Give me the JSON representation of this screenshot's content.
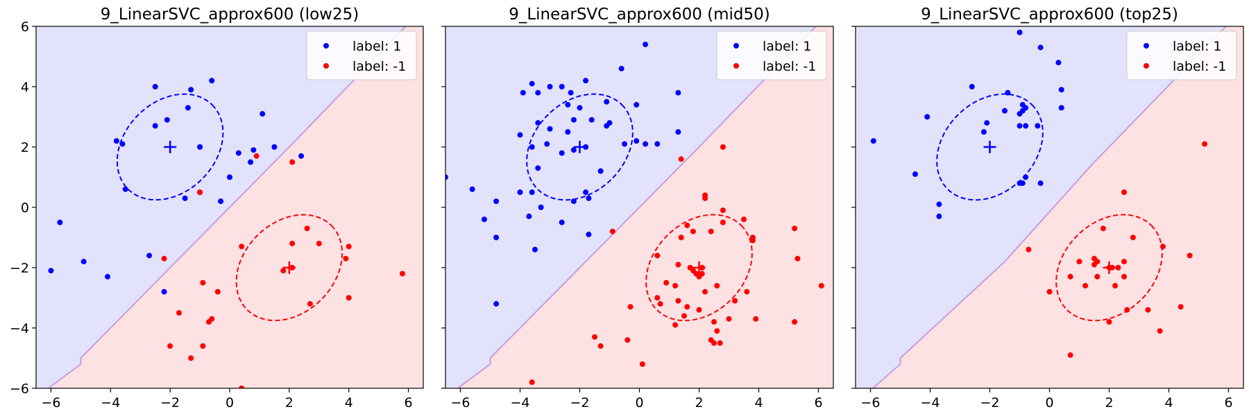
{
  "colors": {
    "blue_point": "#0000ff",
    "red_point": "#ff0000",
    "blue_region": "#e2e2fc",
    "red_region": "#fde1e3",
    "boundary": "#c59edb"
  },
  "chart_data": [
    {
      "type": "scatter",
      "title": "9_LinearSVC_approx600 (low25)",
      "xlim": [
        -6.5,
        6.5
      ],
      "ylim": [
        -6,
        6
      ],
      "xticks": [
        -6,
        -4,
        -2,
        0,
        2,
        4,
        6
      ],
      "yticks": [
        -6,
        -4,
        -2,
        0,
        2,
        4,
        6
      ],
      "tick_labels_x": [
        "−6",
        "−4",
        "−2",
        "0",
        "2",
        "4",
        "6"
      ],
      "tick_labels_y": [
        "−6",
        "−4",
        "−2",
        "0",
        "2",
        "4",
        "6"
      ],
      "show_y_tick_labels": true,
      "legend_position": "top-right",
      "boundary": [
        [
          -6.5,
          -6.3
        ],
        [
          -5.0,
          -5.2
        ],
        [
          -5.0,
          -5.0
        ],
        [
          1.8,
          1.8
        ],
        [
          2.0,
          2.0
        ],
        [
          6.5,
          6.6
        ]
      ],
      "series": [
        {
          "name": "label: 1",
          "color": "#0000ff",
          "center": [
            -2,
            2
          ],
          "ellipse": {
            "rx": 2.0,
            "ry": 1.5,
            "angle": 45
          },
          "points": [
            [
              -2.5,
              4.0
            ],
            [
              -1.3,
              3.9
            ],
            [
              -0.6,
              4.2
            ],
            [
              -1.4,
              3.3
            ],
            [
              -2.1,
              2.9
            ],
            [
              -2.5,
              2.7
            ],
            [
              -3.8,
              2.2
            ],
            [
              -3.6,
              2.1
            ],
            [
              -1.0,
              2.0
            ],
            [
              0.3,
              1.8
            ],
            [
              0.8,
              1.9
            ],
            [
              1.5,
              2.0
            ],
            [
              1.1,
              3.1
            ],
            [
              -3.5,
              0.6
            ],
            [
              -1.0,
              0.5
            ],
            [
              -0.3,
              0.2
            ],
            [
              0.0,
              1.0
            ],
            [
              0.7,
              1.5
            ],
            [
              -1.5,
              0.3
            ],
            [
              -5.7,
              -0.5
            ],
            [
              -6.0,
              -2.1
            ],
            [
              -4.9,
              -1.8
            ],
            [
              -4.1,
              -2.3
            ],
            [
              -2.7,
              -1.6
            ],
            [
              -2.2,
              -2.8
            ],
            [
              2.4,
              1.7
            ]
          ]
        },
        {
          "name": "label: -1",
          "color": "#ff0000",
          "center": [
            2,
            -2
          ],
          "ellipse": {
            "rx": 2.0,
            "ry": 1.5,
            "angle": 45
          },
          "points": [
            [
              -1.0,
              0.5
            ],
            [
              0.9,
              1.7
            ],
            [
              2.1,
              1.5
            ],
            [
              0.4,
              -1.3
            ],
            [
              2.1,
              -1.2
            ],
            [
              2.6,
              -0.7
            ],
            [
              3.0,
              -1.2
            ],
            [
              4.0,
              -1.3
            ],
            [
              3.9,
              -1.7
            ],
            [
              1.8,
              -2.1
            ],
            [
              2.1,
              -2.0
            ],
            [
              2.7,
              -3.2
            ],
            [
              4.0,
              -3.0
            ],
            [
              -2.2,
              -1.7
            ],
            [
              -0.9,
              -2.5
            ],
            [
              -0.4,
              -2.8
            ],
            [
              -0.6,
              -3.7
            ],
            [
              -0.7,
              -3.8
            ],
            [
              -1.7,
              -3.5
            ],
            [
              -2.0,
              -4.6
            ],
            [
              -0.9,
              -4.6
            ],
            [
              -1.3,
              -5.0
            ],
            [
              0.4,
              -6.0
            ],
            [
              5.8,
              -2.2
            ]
          ]
        }
      ]
    },
    {
      "type": "scatter",
      "title": "9_LinearSVC_approx600 (mid50)",
      "xlim": [
        -6.5,
        6.5
      ],
      "ylim": [
        -6,
        6
      ],
      "xticks": [
        -6,
        -4,
        -2,
        0,
        2,
        4,
        6
      ],
      "yticks": [
        -6,
        -4,
        -2,
        0,
        2,
        4,
        6
      ],
      "tick_labels_x": [
        "−6",
        "−4",
        "−2",
        "0",
        "2",
        "4",
        "6"
      ],
      "tick_labels_y": [
        "−6",
        "−4",
        "−2",
        "0",
        "2",
        "4",
        "6"
      ],
      "show_y_tick_labels": false,
      "legend_position": "top-right",
      "boundary": [
        [
          -6.5,
          -6.3
        ],
        [
          -5.0,
          -5.2
        ],
        [
          -5.0,
          -5.0
        ],
        [
          1.8,
          1.8
        ],
        [
          2.0,
          2.0
        ],
        [
          6.5,
          6.6
        ]
      ],
      "series": [
        {
          "name": "label: 1",
          "color": "#0000ff",
          "center": [
            -2,
            2
          ],
          "ellipse": {
            "rx": 2.0,
            "ry": 1.5,
            "angle": 45
          },
          "points": [
            [
              0.2,
              5.4
            ],
            [
              -0.6,
              4.6
            ],
            [
              -3.6,
              4.1
            ],
            [
              -3.0,
              4.0
            ],
            [
              -2.6,
              4.0
            ],
            [
              -1.8,
              4.2
            ],
            [
              -3.9,
              3.8
            ],
            [
              -3.4,
              3.8
            ],
            [
              -2.3,
              3.8
            ],
            [
              -2.0,
              3.3
            ],
            [
              -2.4,
              3.4
            ],
            [
              -1.1,
              3.5
            ],
            [
              -0.1,
              3.4
            ],
            [
              1.3,
              3.8
            ],
            [
              -3.4,
              2.8
            ],
            [
              -2.2,
              2.9
            ],
            [
              -1.6,
              2.9
            ],
            [
              -1.0,
              2.8
            ],
            [
              -1.1,
              2.7
            ],
            [
              -3.0,
              2.6
            ],
            [
              -2.4,
              2.5
            ],
            [
              -3.6,
              2.0
            ],
            [
              -3.1,
              2.1
            ],
            [
              -2.6,
              1.8
            ],
            [
              -2.2,
              1.9
            ],
            [
              -1.8,
              2.0
            ],
            [
              -0.5,
              2.1
            ],
            [
              -0.1,
              2.2
            ],
            [
              0.2,
              2.1
            ],
            [
              0.6,
              2.1
            ],
            [
              1.3,
              2.5
            ],
            [
              -4.0,
              2.4
            ],
            [
              -3.4,
              1.3
            ],
            [
              -1.3,
              1.2
            ],
            [
              -4.0,
              0.5
            ],
            [
              -3.6,
              0.5
            ],
            [
              -1.8,
              0.5
            ],
            [
              -3.3,
              0.0
            ],
            [
              -3.7,
              -0.3
            ],
            [
              -2.2,
              0.2
            ],
            [
              -1.7,
              0.3
            ],
            [
              -5.6,
              0.6
            ],
            [
              -5.2,
              -0.4
            ],
            [
              -4.8,
              0.2
            ],
            [
              -2.6,
              -0.5
            ],
            [
              -1.7,
              -0.9
            ],
            [
              -4.8,
              -1.0
            ],
            [
              -3.5,
              -1.4
            ],
            [
              -6.5,
              1.0
            ],
            [
              -4.8,
              -3.2
            ]
          ]
        },
        {
          "name": "label: -1",
          "color": "#ff0000",
          "center": [
            2,
            -2
          ],
          "ellipse": {
            "rx": 2.0,
            "ry": 1.5,
            "angle": 45
          },
          "points": [
            [
              1.4,
              1.6
            ],
            [
              2.8,
              2.0
            ],
            [
              2.2,
              0.4
            ],
            [
              2.2,
              0.3
            ],
            [
              2.8,
              -0.1
            ],
            [
              1.6,
              -0.6
            ],
            [
              2.4,
              -0.8
            ],
            [
              2.8,
              -0.5
            ],
            [
              3.5,
              -0.4
            ],
            [
              3.8,
              -1.0
            ],
            [
              3.8,
              -1.1
            ],
            [
              -0.9,
              -0.8
            ],
            [
              1.8,
              -0.8
            ],
            [
              1.4,
              -1.0
            ],
            [
              0.6,
              -1.6
            ],
            [
              1.3,
              -1.9
            ],
            [
              1.7,
              -2.0
            ],
            [
              2.1,
              -2.0
            ],
            [
              2.1,
              -2.2
            ],
            [
              1.8,
              -2.1
            ],
            [
              1.9,
              -2.2
            ],
            [
              2.0,
              -2.3
            ],
            [
              0.9,
              -2.5
            ],
            [
              1.2,
              -2.6
            ],
            [
              2.2,
              -2.8
            ],
            [
              2.6,
              -2.6
            ],
            [
              3.6,
              -2.8
            ],
            [
              3.2,
              -3.1
            ],
            [
              0.6,
              -3.0
            ],
            [
              -0.3,
              -3.3
            ],
            [
              0.7,
              -3.2
            ],
            [
              1.3,
              -3.1
            ],
            [
              1.6,
              -3.3
            ],
            [
              2.0,
              -3.4
            ],
            [
              3.0,
              -3.7
            ],
            [
              1.2,
              -3.9
            ],
            [
              1.5,
              -3.6
            ],
            [
              2.5,
              -3.8
            ],
            [
              2.6,
              -4.1
            ],
            [
              3.9,
              -3.7
            ],
            [
              2.5,
              -4.5
            ],
            [
              2.7,
              -4.5
            ],
            [
              5.2,
              -0.7
            ],
            [
              5.3,
              -1.7
            ],
            [
              6.1,
              -2.6
            ],
            [
              5.2,
              -3.8
            ],
            [
              -1.5,
              -4.3
            ],
            [
              -1.3,
              -4.6
            ],
            [
              -0.4,
              -4.4
            ],
            [
              0.1,
              -5.2
            ],
            [
              -3.6,
              -5.8
            ],
            [
              2.4,
              -4.4
            ]
          ]
        }
      ]
    },
    {
      "type": "scatter",
      "title": "9_LinearSVC_approx600 (top25)",
      "xlim": [
        -6.5,
        6.5
      ],
      "ylim": [
        -6,
        6
      ],
      "xticks": [
        -6,
        -4,
        -2,
        0,
        2,
        4,
        6
      ],
      "yticks": [
        -6,
        -4,
        -2,
        0,
        2,
        4,
        6
      ],
      "tick_labels_x": [
        "−6",
        "−4",
        "−2",
        "0",
        "2",
        "4",
        "6"
      ],
      "tick_labels_y": [
        "−6",
        "−4",
        "−2",
        "0",
        "2",
        "4",
        "6"
      ],
      "show_y_tick_labels": false,
      "legend_position": "top-right",
      "boundary": [
        [
          -6.5,
          -6.5
        ],
        [
          -5.0,
          -5.2
        ],
        [
          -5.0,
          -5.0
        ],
        [
          -1.5,
          -1.8
        ],
        [
          1.5,
          1.5
        ],
        [
          1.8,
          1.8
        ],
        [
          6.5,
          6.6
        ]
      ],
      "series": [
        {
          "name": "label: 1",
          "color": "#0000ff",
          "center": [
            -2,
            2
          ],
          "ellipse": {
            "rx": 2.0,
            "ry": 1.5,
            "angle": 45
          },
          "points": [
            [
              -1.0,
              5.8
            ],
            [
              -0.3,
              5.3
            ],
            [
              0.3,
              4.8
            ],
            [
              0.4,
              3.9
            ],
            [
              -2.6,
              4.0
            ],
            [
              -1.4,
              3.8
            ],
            [
              -0.9,
              3.4
            ],
            [
              -0.9,
              3.2
            ],
            [
              -1.0,
              3.1
            ],
            [
              -0.8,
              3.3
            ],
            [
              -1.0,
              2.7
            ],
            [
              -0.8,
              2.7
            ],
            [
              -0.4,
              2.7
            ],
            [
              0.4,
              3.3
            ],
            [
              -1.5,
              3.2
            ],
            [
              -4.1,
              3.0
            ],
            [
              -2.1,
              2.8
            ],
            [
              -2.2,
              2.5
            ],
            [
              -5.9,
              2.2
            ],
            [
              -4.5,
              1.1
            ],
            [
              -0.8,
              1.0
            ],
            [
              -1.0,
              0.8
            ],
            [
              -0.9,
              0.8
            ],
            [
              -0.3,
              0.8
            ],
            [
              -3.7,
              0.1
            ],
            [
              -3.7,
              -0.3
            ]
          ]
        },
        {
          "name": "label: -1",
          "color": "#ff0000",
          "center": [
            2,
            -2
          ],
          "ellipse": {
            "rx": 2.0,
            "ry": 1.5,
            "angle": 45
          },
          "points": [
            [
              5.2,
              2.1
            ],
            [
              2.5,
              0.5
            ],
            [
              1.8,
              -0.7
            ],
            [
              2.8,
              -1.0
            ],
            [
              3.8,
              -1.3
            ],
            [
              4.7,
              -1.6
            ],
            [
              -0.7,
              -1.4
            ],
            [
              1.0,
              -1.8
            ],
            [
              1.5,
              -1.7
            ],
            [
              1.5,
              -1.9
            ],
            [
              1.6,
              -1.8
            ],
            [
              2.5,
              -1.8
            ],
            [
              2.3,
              -2.0
            ],
            [
              2.0,
              -2.0
            ],
            [
              2.1,
              -2.0
            ],
            [
              0.7,
              -2.3
            ],
            [
              1.6,
              -2.3
            ],
            [
              2.5,
              -2.3
            ],
            [
              1.2,
              -2.6
            ],
            [
              2.2,
              -2.6
            ],
            [
              0.0,
              -2.8
            ],
            [
              2.6,
              -3.4
            ],
            [
              3.3,
              -3.4
            ],
            [
              4.4,
              -3.3
            ],
            [
              2.0,
              -3.8
            ],
            [
              3.7,
              -4.1
            ],
            [
              0.7,
              -4.9
            ]
          ]
        }
      ]
    }
  ]
}
